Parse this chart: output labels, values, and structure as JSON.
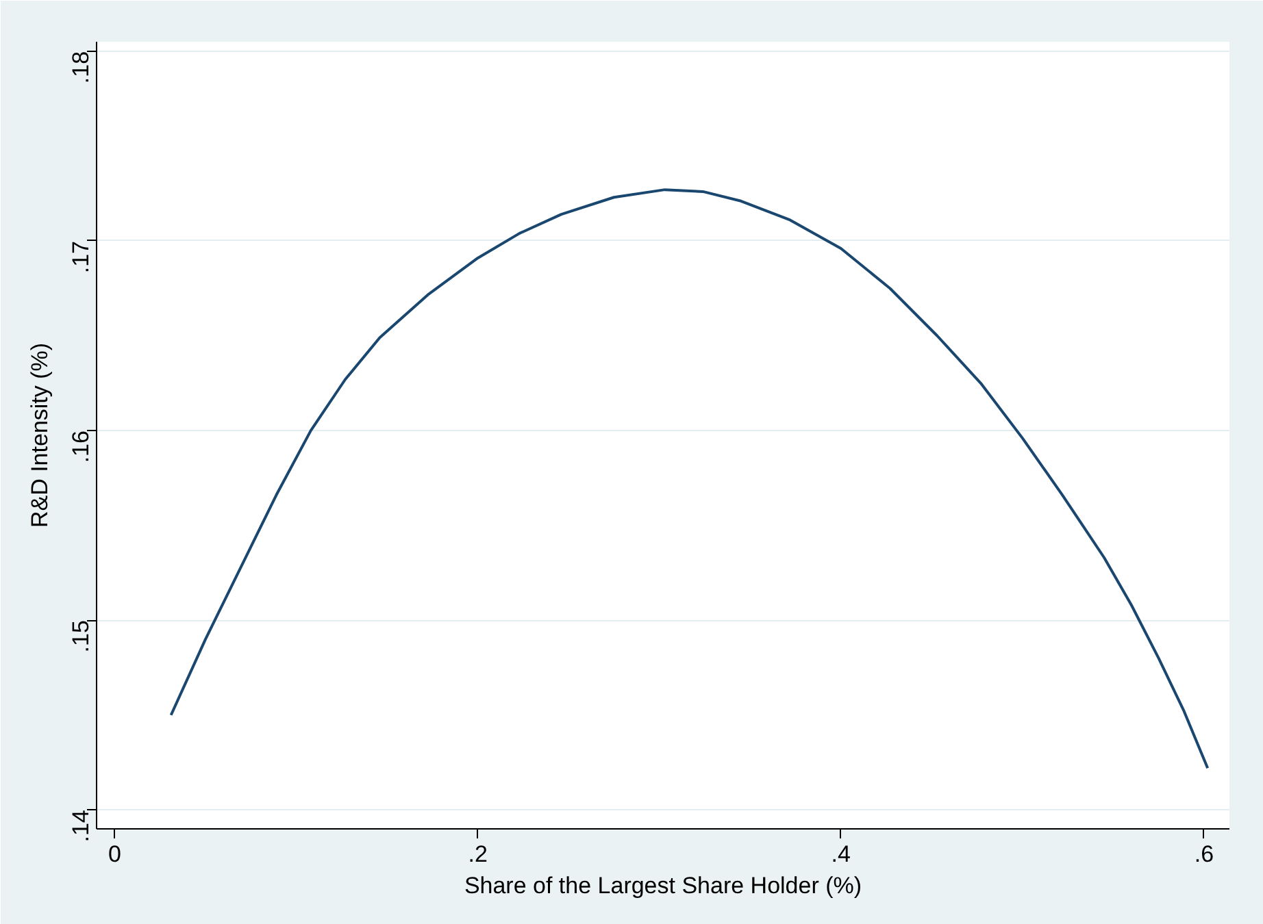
{
  "chart_data": {
    "type": "line",
    "xlabel": "Share of the Largest Share Holder (%)",
    "ylabel": "R&D Intensity (%)",
    "x": [
      0.031,
      0.05,
      0.07,
      0.089,
      0.108,
      0.127,
      0.146,
      0.173,
      0.2,
      0.223,
      0.246,
      0.275,
      0.303,
      0.324,
      0.345,
      0.372,
      0.4,
      0.427,
      0.453,
      0.477,
      0.5,
      0.522,
      0.545,
      0.56,
      0.575,
      0.589,
      0.602
    ],
    "series": [
      {
        "color": "#1a476f",
        "values": [
          0.145,
          0.149,
          0.1529,
          0.1566,
          0.16,
          0.1627,
          0.1649,
          0.1672,
          0.1691,
          0.1704,
          0.1714,
          0.1723,
          0.1727,
          0.1726,
          0.1721,
          0.1711,
          0.1696,
          0.1675,
          0.165,
          0.1625,
          0.1596,
          0.1566,
          0.1533,
          0.1508,
          0.148,
          0.1452,
          0.1422
        ]
      }
    ],
    "xlim": [
      -0.01,
      0.614
    ],
    "ylim": [
      0.139,
      0.1805
    ],
    "xticks": [
      {
        "value": 0,
        "label": "0"
      },
      {
        "value": 0.2,
        "label": ".2"
      },
      {
        "value": 0.4,
        "label": ".4"
      },
      {
        "value": 0.6,
        "label": ".6"
      }
    ],
    "yticks": [
      {
        "value": 0.14,
        "label": ".14"
      },
      {
        "value": 0.15,
        "label": ".15"
      },
      {
        "value": 0.16,
        "label": ".16"
      },
      {
        "value": 0.17,
        "label": ".17"
      },
      {
        "value": 0.18,
        "label": ".18"
      }
    ],
    "grid": "y",
    "marker": "none",
    "line_style": "solid"
  }
}
